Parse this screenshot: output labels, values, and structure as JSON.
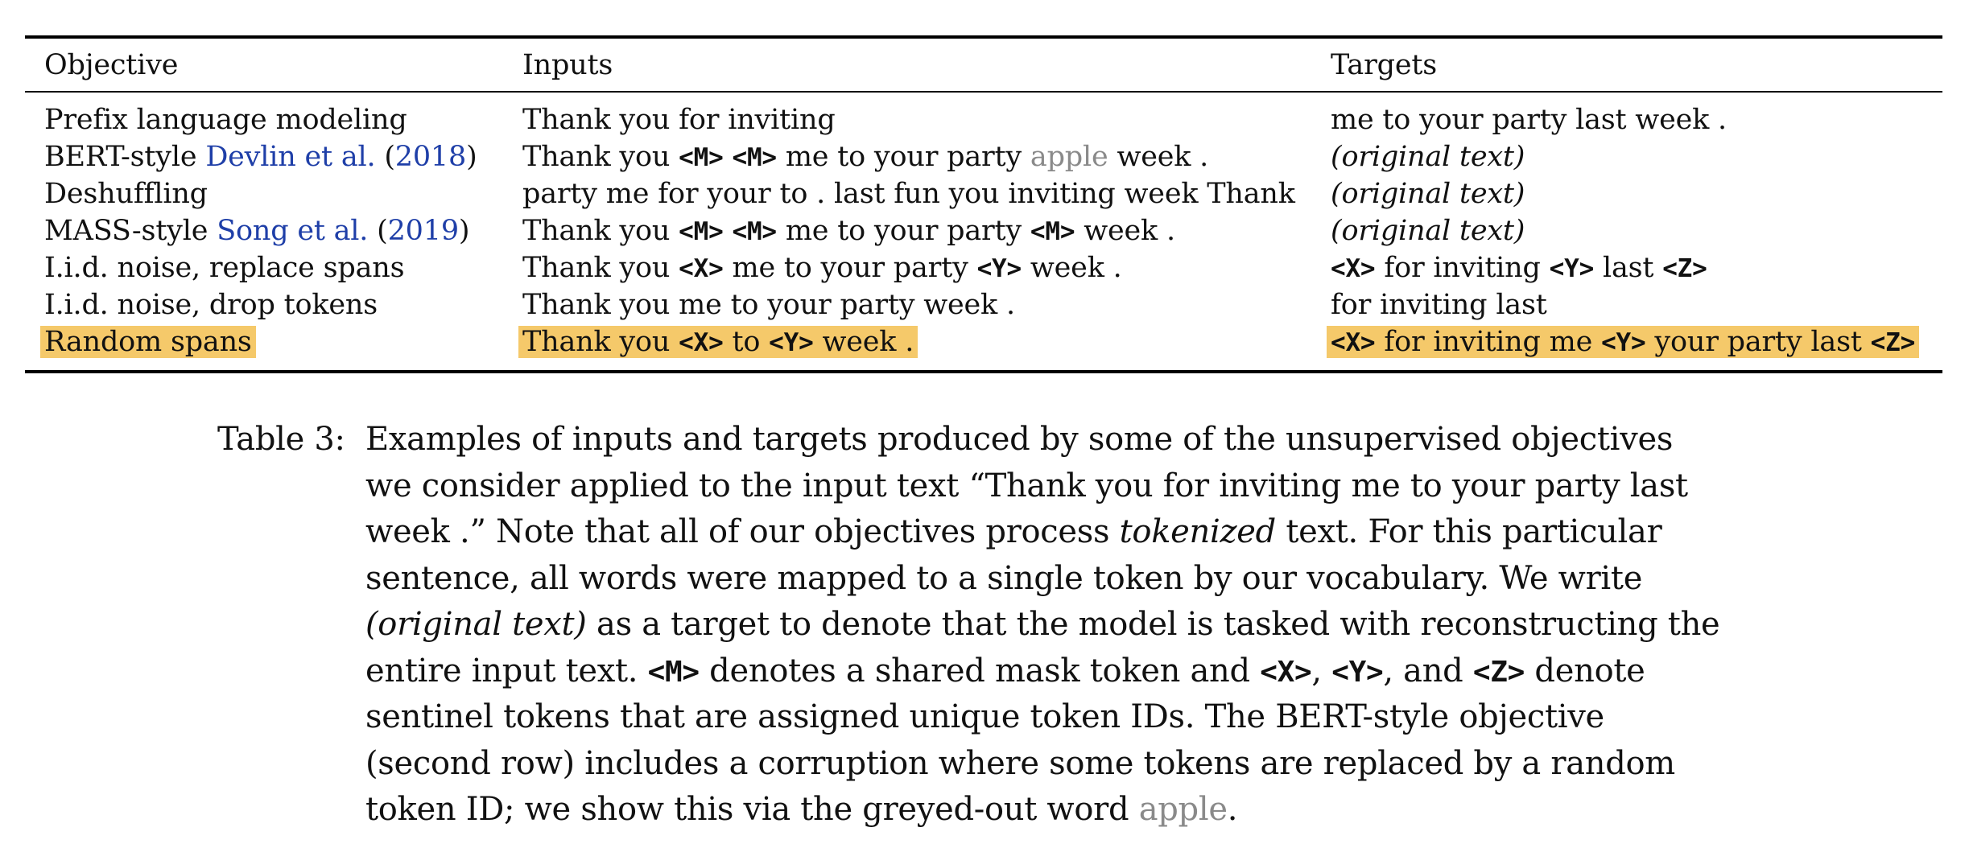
{
  "table": {
    "headers": [
      "Objective",
      "Inputs",
      "Targets"
    ],
    "rows": [
      {
        "objective": [
          "Prefix language modeling"
        ],
        "inputs": [
          "Thank you for inviting"
        ],
        "targets": [
          "me to your party last week ."
        ]
      },
      {
        "objective": [
          "BERT-style ",
          "Devlin et al.",
          " (",
          "2018",
          ")"
        ],
        "inputs": [
          "Thank you ",
          "<M>",
          " ",
          "<M>",
          " me to your party ",
          "apple",
          " week ."
        ],
        "targets": [
          "(original text)"
        ]
      },
      {
        "objective": [
          "Deshuffling"
        ],
        "inputs": [
          "party me for your to . last fun you inviting week Thank"
        ],
        "targets": [
          "(original text)"
        ]
      },
      {
        "objective": [
          "MASS-style ",
          "Song et al.",
          " (",
          "2019",
          ")"
        ],
        "inputs": [
          "Thank you ",
          "<M>",
          " ",
          "<M>",
          " me to your party ",
          "<M>",
          " week ."
        ],
        "targets": [
          "(original text)"
        ]
      },
      {
        "objective": [
          "I.i.d. noise, replace spans"
        ],
        "inputs": [
          "Thank you ",
          "<X>",
          " me to your party ",
          "<Y>",
          " week ."
        ],
        "targets": [
          "<X>",
          " for inviting ",
          "<Y>",
          " last ",
          "<Z>"
        ]
      },
      {
        "objective": [
          "I.i.d. noise, drop tokens"
        ],
        "inputs": [
          "Thank you me to your party week ."
        ],
        "targets": [
          "for inviting last"
        ]
      },
      {
        "objective": [
          "Random spans"
        ],
        "inputs": [
          "Thank you ",
          "<X>",
          " to ",
          "<Y>",
          " week ."
        ],
        "targets": [
          "<X>",
          " for inviting me ",
          "<Y>",
          " your party last ",
          "<Z>"
        ],
        "highlighted": true
      }
    ]
  },
  "caption": {
    "label": "Table 3:",
    "lines": [
      [
        "Examples of inputs and targets produced by some of the unsupervised objectives"
      ],
      [
        "we consider applied to the input text “Thank you for inviting me to your party last"
      ],
      [
        "week .” Note that all of our objectives process ",
        "tokenized",
        " text. For this particular"
      ],
      [
        "sentence, all words were mapped to a single token by our vocabulary. We write"
      ],
      [
        "(original text)",
        " as a target to denote that the model is tasked with reconstructing the"
      ],
      [
        "entire input text. ",
        "<M>",
        " denotes a shared mask token and ",
        "<X>",
        ", ",
        "<Y>",
        ", and ",
        "<Z>",
        " denote"
      ],
      [
        "sentinel tokens that are assigned unique token IDs. The BERT-style objective"
      ],
      [
        "(second row) includes a corruption where some tokens are replaced by a random"
      ],
      [
        "token ID; we show this via the greyed-out word ",
        "apple",
        "."
      ]
    ]
  },
  "colors": {
    "highlight": "#f5c96a",
    "citation_link": "#1f3fa8",
    "greyed_word": "#8a8a8a"
  }
}
